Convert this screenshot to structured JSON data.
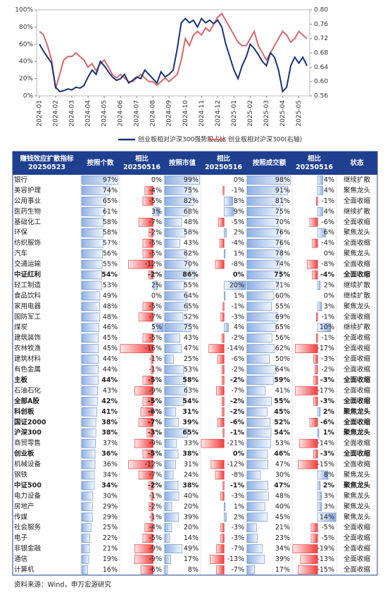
{
  "chart_data": {
    "type": "line",
    "categories": [
      "2024-01",
      null,
      null,
      null,
      "2024-02",
      null,
      null,
      null,
      "2024-03",
      null,
      null,
      null,
      "2024-04",
      null,
      null,
      null,
      "2024-05",
      null,
      null,
      null,
      "2024-06",
      null,
      null,
      null,
      "2024-07",
      null,
      null,
      null,
      "2024-08",
      null,
      null,
      null,
      "2024-09",
      null,
      null,
      null,
      "2024-10",
      null,
      null,
      null,
      "2024-11",
      null,
      null,
      null,
      "2024-12",
      null,
      null,
      null,
      "2025-01",
      null,
      null,
      null,
      "2025-02",
      null,
      null,
      null,
      "2025-03",
      null,
      null,
      null,
      "2025-04",
      null,
      null,
      null,
      "2025-05",
      null,
      null
    ],
    "series": [
      {
        "name": "创业板相对沪深300强势股占比",
        "color": "#1a3378",
        "values": [
          60,
          52,
          45,
          38,
          10,
          5,
          6,
          8,
          7,
          10,
          9,
          12,
          22,
          30,
          25,
          40,
          35,
          28,
          22,
          18,
          20,
          25,
          15,
          18,
          22,
          20,
          30,
          25,
          20,
          15,
          28,
          22,
          25,
          30,
          55,
          85,
          90,
          85,
          88,
          80,
          90,
          85,
          88,
          84,
          88,
          80,
          60,
          45,
          30,
          20,
          35,
          45,
          60,
          55,
          48,
          40,
          35,
          50,
          45,
          30,
          5,
          10,
          35,
          45,
          38,
          45,
          35
        ]
      },
      {
        "name": "创业板相对沪深300(右轴)",
        "color": "#d9676b",
        "axis": "y2",
        "values": [
          0.74,
          0.73,
          0.7,
          0.66,
          0.58,
          0.62,
          0.66,
          0.67,
          0.67,
          0.68,
          0.67,
          0.66,
          0.64,
          0.65,
          0.63,
          0.65,
          0.66,
          0.64,
          0.62,
          0.61,
          0.62,
          0.61,
          0.6,
          0.6,
          0.61,
          0.62,
          0.61,
          0.6,
          0.6,
          0.59,
          0.6,
          0.61,
          0.6,
          0.61,
          0.62,
          0.66,
          0.72,
          0.7,
          0.73,
          0.74,
          0.73,
          0.75,
          0.74,
          0.76,
          0.78,
          0.79,
          0.77,
          0.75,
          0.73,
          0.71,
          0.7,
          0.7,
          0.72,
          0.74,
          0.7,
          0.68,
          0.66,
          0.68,
          0.7,
          0.72,
          0.74,
          0.73,
          0.71,
          0.72,
          0.74,
          0.73,
          0.72
        ]
      }
    ],
    "ylim": [
      0,
      100
    ],
    "yticks": [
      {
        "value": 0,
        "label": "0%"
      },
      {
        "value": 20,
        "label": "20%"
      },
      {
        "value": 40,
        "label": "40%"
      },
      {
        "value": 60,
        "label": "60%"
      },
      {
        "value": 80,
        "label": "80%"
      },
      {
        "value": 100,
        "label": "100%"
      }
    ],
    "y2lim": [
      0.56,
      0.8
    ],
    "y2ticks": [
      0.56,
      {
        "value": 0.6,
        "label": "0.60"
      },
      0.64,
      0.68,
      0.72,
      0.76,
      {
        "value": 0.8,
        "label": "0.80"
      }
    ],
    "grid": false
  },
  "table": {
    "header": [
      [
        "赚钱效应扩散指标",
        "20250523"
      ],
      [
        "按照个数"
      ],
      [
        "相比",
        "20250516"
      ],
      [
        "按照市值"
      ],
      [
        "相比",
        "20250516"
      ],
      [
        "按照成交额"
      ],
      [
        "相比",
        "20250516"
      ],
      [
        "状态"
      ]
    ],
    "rows": [
      {
        "name": "银行",
        "values": [
          97,
          0,
          99,
          0,
          98,
          4
        ],
        "value_labels": [
          "97%",
          "0%",
          "99%",
          "0%",
          "98%",
          "4%"
        ],
        "status": "继续扩散"
      },
      {
        "name": "美容护理",
        "values": [
          74,
          -4,
          75,
          -1,
          91,
          4
        ],
        "value_labels": [
          "74%",
          "-4%",
          "75%",
          "-1%",
          "91%",
          "4%"
        ],
        "status": "聚焦龙头"
      },
      {
        "name": "公用事业",
        "values": [
          65,
          -5,
          82,
          8,
          81,
          -1
        ],
        "value_labels": [
          "65%",
          "-5%",
          "82%",
          "8%",
          "81%",
          "-1%"
        ],
        "status": "全面收缩"
      },
      {
        "name": "医药生物",
        "values": [
          61,
          3,
          68,
          9,
          75,
          4
        ],
        "value_labels": [
          "61%",
          "3%",
          "68%",
          "9%",
          "75%",
          "4%"
        ],
        "status": "继续扩散"
      },
      {
        "name": "基础化工",
        "values": [
          58,
          -7,
          48,
          -5,
          70,
          -6
        ],
        "value_labels": [
          "58%",
          "-7%",
          "48%",
          "-5%",
          "70%",
          "-6%"
        ],
        "status": "全面收缩"
      },
      {
        "name": "环保",
        "values": [
          58,
          -2,
          58,
          2,
          76,
          6
        ],
        "value_labels": [
          "58%",
          "-2%",
          "58%",
          "2%",
          "76%",
          "6%"
        ],
        "status": "聚焦龙头"
      },
      {
        "name": "纺织服饰",
        "values": [
          57,
          -5,
          43,
          -4,
          76,
          -4
        ],
        "value_labels": [
          "57%",
          "-5%",
          "43%",
          "-4%",
          "76%",
          "-4%"
        ],
        "status": "全面收缩"
      },
      {
        "name": "汽车",
        "values": [
          56,
          -5,
          62,
          1,
          78,
          0
        ],
        "value_labels": [
          "56%",
          "-5%",
          "62%",
          "1%",
          "78%",
          "0%"
        ],
        "status": "聚焦龙头"
      },
      {
        "name": "交通运输",
        "values": [
          55,
          -12,
          70,
          -8,
          74,
          -8
        ],
        "value_labels": [
          "55%",
          "-12%",
          "70%",
          "-8%",
          "74%",
          "-8%"
        ],
        "status": "全面收缩"
      },
      {
        "name": "中证红利",
        "values": [
          54,
          -2,
          86,
          0,
          75,
          -4
        ],
        "value_labels": [
          "54%",
          "-2%",
          "86%",
          "0%",
          "75%",
          "-4%"
        ],
        "status": "全面收缩",
        "bold": true
      },
      {
        "name": "轻工制造",
        "values": [
          53,
          2,
          55,
          20,
          71,
          2
        ],
        "value_labels": [
          "53%",
          "2%",
          "55%",
          "20%",
          "71%",
          "2%"
        ],
        "status": "继续扩散"
      },
      {
        "name": "食品饮料",
        "values": [
          49,
          0,
          64,
          1,
          60,
          0
        ],
        "value_labels": [
          "49%",
          "0%",
          "64%",
          "1%",
          "60%",
          "0%"
        ],
        "status": "继续扩散"
      },
      {
        "name": "家用电器",
        "values": [
          48,
          -5,
          65,
          -1,
          55,
          3
        ],
        "value_labels": [
          "48%",
          "-5%",
          "65%",
          "-1%",
          "55%",
          "3%"
        ],
        "status": "聚焦龙头"
      },
      {
        "name": "国防军工",
        "values": [
          48,
          -7,
          52,
          -3,
          69,
          -1
        ],
        "value_labels": [
          "48%",
          "-7%",
          "52%",
          "-3%",
          "69%",
          "-1%"
        ],
        "status": "全面收缩"
      },
      {
        "name": "煤炭",
        "values": [
          46,
          5,
          75,
          4,
          65,
          10
        ],
        "value_labels": [
          "46%",
          "5%",
          "75%",
          "4%",
          "65%",
          "10%"
        ],
        "status": "继续扩散"
      },
      {
        "name": "建筑装饰",
        "values": [
          45,
          -5,
          43,
          -2,
          56,
          -1
        ],
        "value_labels": [
          "45%",
          "-5%",
          "43%",
          "-2%",
          "56%",
          "-1%"
        ],
        "status": "全面收缩"
      },
      {
        "name": "农林牧渔",
        "values": [
          45,
          -16,
          47,
          -14,
          62,
          -17
        ],
        "value_labels": [
          "45%",
          "-16%",
          "47%",
          "-14%",
          "62%",
          "-17%"
        ],
        "status": "全面收缩"
      },
      {
        "name": "建筑材料",
        "values": [
          44,
          -1,
          25,
          -6,
          50,
          -3
        ],
        "value_labels": [
          "44%",
          "-1%",
          "25%",
          "-6%",
          "50%",
          "-3%"
        ],
        "status": "全面收缩"
      },
      {
        "name": "有色金属",
        "values": [
          44,
          -1,
          53,
          -2,
          64,
          -2
        ],
        "value_labels": [
          "44%",
          "-1%",
          "53%",
          "-2%",
          "64%",
          "-2%"
        ],
        "status": "全面收缩"
      },
      {
        "name": "主板",
        "values": [
          44,
          -5,
          58,
          -2,
          59,
          -3
        ],
        "value_labels": [
          "44%",
          "-5%",
          "58%",
          "-2%",
          "59%",
          "-3%"
        ],
        "status": "全面收缩",
        "bold": true
      },
      {
        "name": "石油石化",
        "values": [
          43,
          -9,
          63,
          -7,
          41,
          -17
        ],
        "value_labels": [
          "43%",
          "-9%",
          "63%",
          "-7%",
          "41%",
          "-17%"
        ],
        "status": "全面收缩"
      },
      {
        "name": "全部A股",
        "values": [
          42,
          -5,
          54,
          -2,
          55,
          -3
        ],
        "value_labels": [
          "42%",
          "-5%",
          "54%",
          "-2%",
          "55%",
          "-3%"
        ],
        "status": "全面收缩",
        "bold": true
      },
      {
        "name": "科创板",
        "values": [
          41,
          -6,
          31,
          -2,
          45,
          2
        ],
        "value_labels": [
          "41%",
          "-6%",
          "31%",
          "-2%",
          "45%",
          "2%"
        ],
        "status": "聚焦龙头",
        "bold": true
      },
      {
        "name": "国证2000",
        "values": [
          38,
          -7,
          39,
          -6,
          52,
          -6
        ],
        "value_labels": [
          "38%",
          "-7%",
          "39%",
          "-6%",
          "52%",
          "-6%"
        ],
        "status": "全面收缩",
        "bold": true
      },
      {
        "name": "沪深300",
        "values": [
          38,
          -3,
          65,
          -1,
          54,
          1
        ],
        "value_labels": [
          "38%",
          "-3%",
          "65%",
          "-1%",
          "54%",
          "1%"
        ],
        "status": "聚焦龙头",
        "bold": true
      },
      {
        "name": "商贸零售",
        "values": [
          37,
          -9,
          33,
          -21,
          53,
          -14
        ],
        "value_labels": [
          "37%",
          "-9%",
          "33%",
          "-21%",
          "53%",
          "-14%"
        ],
        "status": "全面收缩"
      },
      {
        "name": "创业板",
        "values": [
          36,
          -5,
          38,
          0,
          46,
          -3
        ],
        "value_labels": [
          "36%",
          "-5%",
          "38%",
          "0%",
          "46%",
          "-3%"
        ],
        "status": "全面收缩",
        "bold": true
      },
      {
        "name": "机械设备",
        "values": [
          36,
          -12,
          31,
          -12,
          47,
          -15
        ],
        "value_labels": [
          "36%",
          "-12%",
          "31%",
          "-12%",
          "47%",
          "-15%"
        ],
        "status": "全面收缩"
      },
      {
        "name": "钢铁",
        "values": [
          34,
          -7,
          24,
          -8,
          30,
          8
        ],
        "value_labels": [
          "34%",
          "-7%",
          "24%",
          "-8%",
          "30%",
          "8%"
        ],
        "status": "聚焦龙头"
      },
      {
        "name": "中证500",
        "values": [
          34,
          -2,
          38,
          -1,
          47,
          2
        ],
        "value_labels": [
          "34%",
          "-2%",
          "38%",
          "-1%",
          "47%",
          "2%"
        ],
        "status": "聚焦龙头",
        "bold": true
      },
      {
        "name": "电力设备",
        "values": [
          30,
          -1,
          40,
          -3,
          48,
          3
        ],
        "value_labels": [
          "30%",
          "-1%",
          "40%",
          "-3%",
          "48%",
          "3%"
        ],
        "status": "聚焦龙头"
      },
      {
        "name": "房地产",
        "values": [
          29,
          -2,
          20,
          1,
          40,
          3
        ],
        "value_labels": [
          "29%",
          "-2%",
          "20%",
          "1%",
          "40%",
          "3%"
        ],
        "status": "聚焦龙头"
      },
      {
        "name": "传媒",
        "values": [
          29,
          -1,
          39,
          2,
          45,
          14
        ],
        "value_labels": [
          "29%",
          "-1%",
          "39%",
          "2%",
          "45%",
          "14%"
        ],
        "status": "聚焦龙头"
      },
      {
        "name": "社会服务",
        "values": [
          25,
          -4,
          20,
          -3,
          21,
          -5
        ],
        "value_labels": [
          "25%",
          "-4%",
          "20%",
          "-3%",
          "21%",
          "-5%"
        ],
        "status": "全面收缩"
      },
      {
        "name": "电子",
        "values": [
          22,
          -5,
          14,
          -3,
          23,
          -5
        ],
        "value_labels": [
          "22%",
          "-5%",
          "14%",
          "-3%",
          "23%",
          "-5%"
        ],
        "status": "全面收缩"
      },
      {
        "name": "非银金融",
        "values": [
          21,
          -9,
          49,
          -7,
          34,
          -19
        ],
        "value_labels": [
          "21%",
          "-9%",
          "49%",
          "-7%",
          "34%",
          "-19%"
        ],
        "status": "全面收缩"
      },
      {
        "name": "通信",
        "values": [
          19,
          -9,
          17,
          -13,
          39,
          -13
        ],
        "value_labels": [
          "19%",
          "-9%",
          "17%",
          "-13%",
          "39%",
          "-13%"
        ],
        "status": "全面收缩"
      },
      {
        "name": "计算机",
        "values": [
          16,
          -6,
          8,
          -7,
          17,
          -15
        ],
        "value_labels": [
          "16%",
          "-6%",
          "8%",
          "-7%",
          "17%",
          "-15%"
        ],
        "status": "全面收缩"
      }
    ]
  },
  "footer": "资料来源：Wind，申万宏源研究"
}
